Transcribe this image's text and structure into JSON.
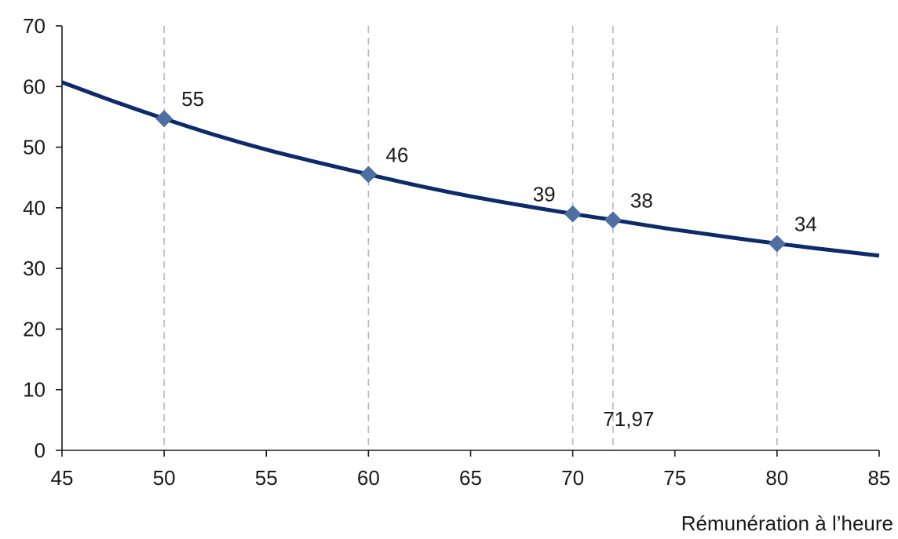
{
  "chart_data": {
    "type": "line",
    "xlabel": "Rémunération à l’heure",
    "ylabel": "",
    "xlim": [
      45,
      85
    ],
    "ylim": [
      0,
      70
    ],
    "x_ticks": [
      45,
      50,
      55,
      60,
      65,
      70,
      75,
      80,
      85
    ],
    "y_ticks": [
      0,
      10,
      20,
      30,
      40,
      50,
      60,
      70
    ],
    "grid": false,
    "legend": "none",
    "series": [
      {
        "color": "#0d2a6b",
        "x": [
          45,
          47.5,
          50,
          52.5,
          55,
          57.5,
          60,
          62.5,
          65,
          67.5,
          70,
          71.97,
          75,
          80,
          85
        ],
        "y": [
          60.7,
          57.6,
          54.7,
          52.0,
          49.6,
          47.5,
          45.5,
          43.6,
          41.9,
          40.4,
          39.0,
          38.0,
          36.4,
          34.1,
          32.1
        ]
      }
    ],
    "markers": [
      {
        "x": 50,
        "y": 54.7,
        "label": "55",
        "label_pos": "above-right"
      },
      {
        "x": 60,
        "y": 45.5,
        "label": "46",
        "label_pos": "above-right"
      },
      {
        "x": 70,
        "y": 39.0,
        "label": "39",
        "label_pos": "above-left"
      },
      {
        "x": 71.97,
        "y": 38.0,
        "label": "38",
        "label_pos": "above-right"
      },
      {
        "x": 80,
        "y": 34.1,
        "label": "34",
        "label_pos": "above-right"
      }
    ],
    "marker_color": "#4f6fa3",
    "vertical_reference_lines": [
      50,
      60,
      70,
      71.97,
      80
    ],
    "annotations": [
      {
        "text": "71,97",
        "x": 71.97,
        "y": 4
      }
    ]
  }
}
